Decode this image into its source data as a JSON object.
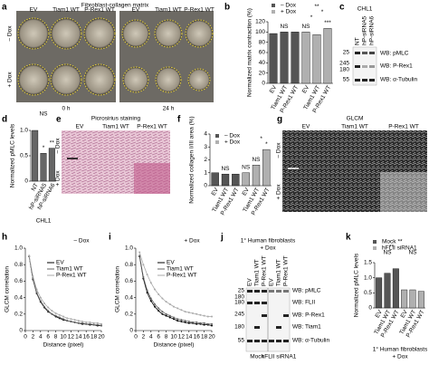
{
  "panel_labels": [
    "a",
    "b",
    "c",
    "d",
    "e",
    "f",
    "g",
    "h",
    "i",
    "j",
    "k"
  ],
  "a": {
    "title": "Fibroblast-collagen matrix",
    "columns": [
      "EV",
      "Tiam1 WT",
      "P-Rex1 WT"
    ],
    "rows": [
      "– Dox",
      "+ Dox"
    ],
    "times": [
      "0 h",
      "24 h"
    ]
  },
  "c": {
    "cell_line": "CHL1",
    "lanes": [
      "NT",
      "hP-siRNA5",
      "hP-siRNA6"
    ],
    "markers": [
      "25",
      "245",
      "180",
      "55"
    ],
    "blots": [
      "WB: pMLC",
      "WB: P-Rex1",
      "WB: α-Tubulin"
    ]
  },
  "e": {
    "title": "Picrosirius staining",
    "columns": [
      "EV",
      "Tiam1 WT",
      "P-Rex1 WT"
    ],
    "rows": [
      "– Dox",
      "+ Dox"
    ]
  },
  "g": {
    "title": "GLCM",
    "columns": [
      "EV",
      "Tiam1 WT",
      "P-Rex1 WT"
    ],
    "rows": [
      "– Dox",
      "+ Dox"
    ]
  },
  "j": {
    "title": "1° Human fibroblasts",
    "subtitle": "+ Dox",
    "lanes": [
      "EV",
      "Tiam1 WT",
      "P-Rex1 WT",
      "EV",
      "Tiam1 WT",
      "P-Rex1 WT"
    ],
    "markers": [
      "25",
      "180",
      "180",
      "245",
      "180",
      "55"
    ],
    "blots": [
      "WB: pMLC",
      "WB: FLII",
      "WB: P-Rex1",
      "WB: Tiam1",
      "WB: α-Tubulin"
    ],
    "groups": [
      "Mock",
      "hFLII siRNA1"
    ]
  },
  "chart_data": [
    {
      "type": "bar",
      "ylabel": "Normalized matrix contraction (%)",
      "categories": [
        "EV",
        "Tiam1 WT",
        "P-Rex1 WT",
        "EV",
        "Tiam1 WT",
        "P-Rex1 WT"
      ],
      "series": [
        {
          "name": "– Dox",
          "color": "#555555",
          "values": [
            97,
            100,
            100,
            null,
            null,
            null
          ]
        },
        {
          "name": "+ Dox",
          "color": "#b0b0b0",
          "values": [
            null,
            null,
            null,
            100,
            95,
            107
          ]
        }
      ],
      "ylim": [
        0,
        120
      ],
      "yticks": [
        0,
        20,
        40,
        60,
        80,
        100,
        120
      ],
      "annotations": [
        "NS",
        "NS",
        "*",
        "***",
        "**",
        "*"
      ]
    },
    {
      "type": "bar",
      "ylabel": "Normalized pMLC levels",
      "categories": [
        "NT",
        "hP-siRNA5",
        "hP-siRNA6"
      ],
      "values": [
        1,
        0.55,
        0.65
      ],
      "color": "#666666",
      "ylim": [
        0,
        1
      ],
      "yticks": [
        0,
        0.5,
        {
          "value": 1,
          "label": "1.0"
        }
      ],
      "group": "CHL1",
      "annotations": [
        "NS",
        "*",
        "**"
      ]
    },
    {
      "type": "bar",
      "ylabel": "Normalized collagen I/III area (%)",
      "categories": [
        "EV",
        "Tiam1 WT",
        "P-Rex1 WT",
        "EV",
        "Tiam1 WT",
        "P-Rex1 WT"
      ],
      "series": [
        {
          "name": "– Dox",
          "color": "#555555",
          "values": [
            1,
            0.9,
            0.9,
            null,
            null,
            null
          ]
        },
        {
          "name": "+ Dox",
          "color": "#b0b0b0",
          "values": [
            null,
            null,
            null,
            1,
            1.6,
            2.8
          ]
        }
      ],
      "ylim": [
        0,
        4
      ],
      "yticks": [
        0,
        1,
        2,
        3,
        4
      ],
      "annotations": [
        "NS",
        "NS",
        "NS",
        "*",
        "*"
      ]
    },
    {
      "type": "line",
      "title": "– Dox",
      "xlabel": "Distance (pixel)",
      "ylabel": "GLCM correlation",
      "x": [
        1,
        2,
        3,
        4,
        5,
        6,
        7,
        8,
        9,
        10,
        11,
        12,
        13,
        14,
        15,
        16,
        17,
        18,
        19,
        20
      ],
      "series": [
        {
          "name": "EV",
          "color": "#000000",
          "values": [
            0.9,
            0.62,
            0.45,
            0.35,
            0.28,
            0.23,
            0.2,
            0.17,
            0.15,
            0.13,
            0.12,
            0.11,
            0.1,
            0.09,
            0.08,
            0.08,
            0.07,
            0.07,
            0.06,
            0.06
          ]
        },
        {
          "name": "Tiam1 WT",
          "color": "#666666",
          "values": [
            0.9,
            0.63,
            0.46,
            0.36,
            0.29,
            0.24,
            0.2,
            0.18,
            0.16,
            0.14,
            0.12,
            0.11,
            0.1,
            0.09,
            0.09,
            0.08,
            0.08,
            0.07,
            0.07,
            0.06
          ]
        },
        {
          "name": "P-Rex1 WT",
          "color": "#aaaaaa",
          "values": [
            0.91,
            0.66,
            0.5,
            0.4,
            0.33,
            0.28,
            0.24,
            0.21,
            0.19,
            0.17,
            0.15,
            0.14,
            0.13,
            0.12,
            0.11,
            0.1,
            0.1,
            0.09,
            0.09,
            0.08
          ]
        }
      ],
      "xlim": [
        0,
        20
      ],
      "xticks": [
        0,
        2,
        4,
        6,
        8,
        10,
        12,
        14,
        16,
        18,
        20
      ],
      "ylim": [
        0,
        1
      ],
      "yticks": [
        0,
        0.2,
        0.4,
        0.6,
        0.8,
        {
          "value": 1,
          "label": "1.0"
        }
      ]
    },
    {
      "type": "line",
      "title": "+ Dox",
      "xlabel": "Distance (pixel)",
      "ylabel": "GLCM correlation",
      "x": [
        1,
        2,
        3,
        4,
        5,
        6,
        7,
        8,
        9,
        10,
        11,
        12,
        13,
        14,
        15,
        16,
        17,
        18,
        19,
        20
      ],
      "series": [
        {
          "name": "EV",
          "color": "#000000",
          "values": [
            0.9,
            0.63,
            0.46,
            0.36,
            0.29,
            0.24,
            0.2,
            0.18,
            0.16,
            0.14,
            0.12,
            0.11,
            0.1,
            0.09,
            0.09,
            0.08,
            0.08,
            0.07,
            0.07,
            0.06
          ]
        },
        {
          "name": "Tiam1 WT",
          "color": "#666666",
          "values": [
            0.91,
            0.65,
            0.49,
            0.39,
            0.32,
            0.27,
            0.23,
            0.2,
            0.18,
            0.16,
            0.14,
            0.13,
            0.12,
            0.11,
            0.1,
            0.1,
            0.09,
            0.09,
            0.08,
            0.08
          ]
        },
        {
          "name": "P-Rex1 WT",
          "color": "#aaaaaa",
          "values": [
            0.95,
            0.8,
            0.68,
            0.58,
            0.5,
            0.44,
            0.39,
            0.35,
            0.32,
            0.29,
            0.27,
            0.25,
            0.23,
            0.22,
            0.21,
            0.2,
            0.19,
            0.18,
            0.17,
            0.17
          ]
        }
      ],
      "xlim": [
        0,
        20
      ],
      "xticks": [
        0,
        2,
        4,
        6,
        8,
        10,
        12,
        14,
        16,
        18,
        20
      ],
      "ylim": [
        0,
        1
      ],
      "yticks": [
        0,
        0.2,
        0.4,
        0.6,
        0.8,
        {
          "value": 1,
          "label": "1.0"
        }
      ]
    },
    {
      "type": "bar",
      "ylabel": "Normalized pMLC levels",
      "categories": [
        "EV",
        "Tiam1 WT",
        "P-Rex1 WT",
        "EV",
        "Tiam1 WT",
        "P-Rex1 WT"
      ],
      "series": [
        {
          "name": "Mock",
          "color": "#555555",
          "values": [
            1,
            1.15,
            1.3,
            null,
            null,
            null
          ]
        },
        {
          "name": "hFLII siRNA1",
          "color": "#b0b0b0",
          "values": [
            null,
            null,
            null,
            0.6,
            0.6,
            0.55
          ]
        }
      ],
      "ylim": [
        0,
        1.5
      ],
      "yticks": [
        0,
        0.5,
        {
          "value": 1,
          "label": "1.0"
        },
        1.5
      ],
      "annotations": [
        "NS",
        "**",
        "NS",
        "**"
      ],
      "footer": "1° Human fibroblasts",
      "subfooter": "+ Dox"
    }
  ]
}
